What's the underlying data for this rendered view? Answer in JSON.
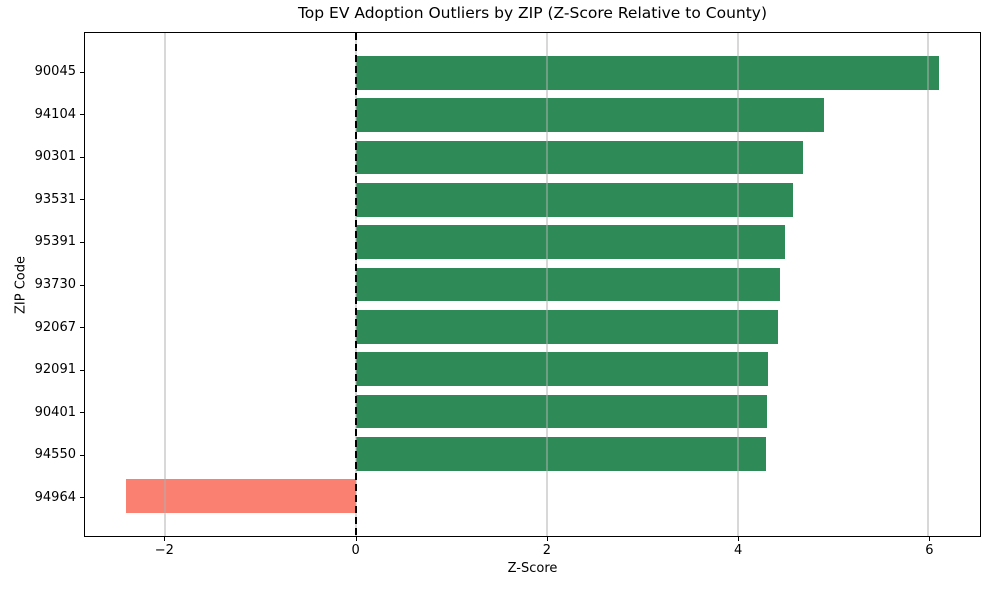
{
  "chart_data": {
    "type": "bar",
    "orientation": "horizontal",
    "title": "Top EV Adoption Outliers by ZIP (Z-Score Relative to County)",
    "xlabel": "Z-Score",
    "ylabel": "ZIP Code",
    "categories": [
      "90045",
      "94104",
      "90301",
      "93531",
      "95391",
      "93730",
      "92067",
      "92091",
      "90401",
      "94550",
      "94964"
    ],
    "values": [
      6.11,
      4.9,
      4.68,
      4.58,
      4.5,
      4.44,
      4.42,
      4.32,
      4.31,
      4.3,
      -2.41
    ],
    "xlim": [
      -2.84,
      6.54
    ],
    "xticks": [
      -2,
      0,
      2,
      4,
      6
    ],
    "xtick_labels": [
      "−2",
      "0",
      "2",
      "4",
      "6"
    ],
    "grid": "vertical-on",
    "legend": "none",
    "zero_line": {
      "x": 0,
      "style": "dashed",
      "color": "#000000"
    },
    "colors": {
      "positive_bar": "#2e8b57",
      "negative_bar": "#fa8072",
      "grid": "#b0b0b0",
      "spine": "#000000",
      "text": "#000000"
    },
    "bar_height_frac": 0.8,
    "y_margin_units": 0.94
  }
}
